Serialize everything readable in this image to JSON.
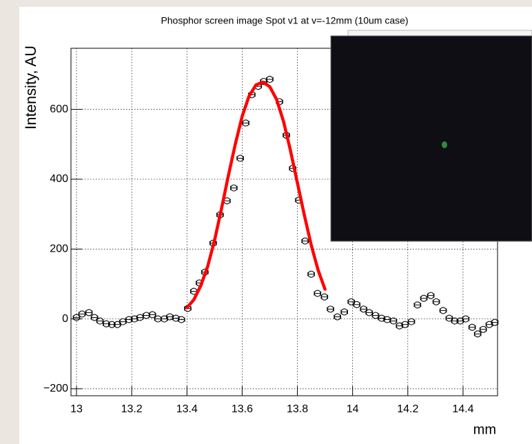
{
  "chart_data": {
    "type": "scatter",
    "title": "Phosphor screen image Spot v1 at v=-12mm (10um case)",
    "x_label": "mm",
    "y_label": "Intensity, AU",
    "xlim": [
      12.98,
      14.525
    ],
    "ylim": [
      -220,
      775
    ],
    "xticks": [
      13,
      13.2,
      13.4,
      13.6,
      13.8,
      14,
      14.2,
      14.4
    ],
    "yticks": [
      {
        "value": -200,
        "label": "−200"
      },
      0,
      200,
      400,
      600
    ],
    "grid": true,
    "series": [
      {
        "color": "#000000",
        "marker": "open-circle",
        "xerr": 0.012,
        "x": [
          13.0,
          13.02,
          13.045,
          13.065,
          13.085,
          13.108,
          13.128,
          13.148,
          13.168,
          13.19,
          13.21,
          13.23,
          13.253,
          13.275,
          13.295,
          13.318,
          13.338,
          13.36,
          13.38,
          13.403,
          13.425,
          13.445,
          13.465,
          13.495,
          13.52,
          13.545,
          13.57,
          13.593,
          13.613,
          13.635,
          13.658,
          13.678,
          13.7,
          13.735,
          13.76,
          13.783,
          13.805,
          13.828,
          13.85,
          13.873,
          13.898,
          13.92,
          13.945,
          13.97,
          13.995,
          14.015,
          14.04,
          14.06,
          14.083,
          14.105,
          14.125,
          14.148,
          14.17,
          14.19,
          14.213,
          14.235,
          14.258,
          14.283,
          14.303,
          14.328,
          14.35,
          14.37,
          14.39,
          14.41,
          14.433,
          14.453,
          14.473,
          14.495,
          14.515
        ],
        "values": [
          4,
          14,
          18,
          4,
          -6,
          -14,
          -16,
          -16,
          -8,
          -2,
          0,
          4,
          10,
          12,
          0,
          0,
          6,
          2,
          -2,
          30,
          79,
          103,
          134,
          217,
          298,
          338,
          375,
          460,
          561,
          642,
          666,
          680,
          686,
          622,
          526,
          431,
          340,
          223,
          128,
          73,
          63,
          28,
          6,
          20,
          49,
          41,
          28,
          18,
          10,
          2,
          -2,
          -6,
          -20,
          -16,
          -8,
          40,
          59,
          67,
          49,
          24,
          2,
          -6,
          -6,
          0,
          -24,
          -43,
          -30,
          -16,
          -10
        ]
      },
      {
        "color": "#ff0000",
        "line": true,
        "x": [
          13.4,
          13.425,
          13.45,
          13.475,
          13.5,
          13.525,
          13.55,
          13.575,
          13.6,
          13.625,
          13.65,
          13.675,
          13.7,
          13.725,
          13.75,
          13.775,
          13.8,
          13.825,
          13.85,
          13.875,
          13.9
        ],
        "values": [
          32,
          55,
          95,
          150,
          225,
          315,
          410,
          500,
          580,
          638,
          670,
          678,
          665,
          628,
          565,
          482,
          390,
          298,
          212,
          140,
          85
        ]
      }
    ]
  }
}
